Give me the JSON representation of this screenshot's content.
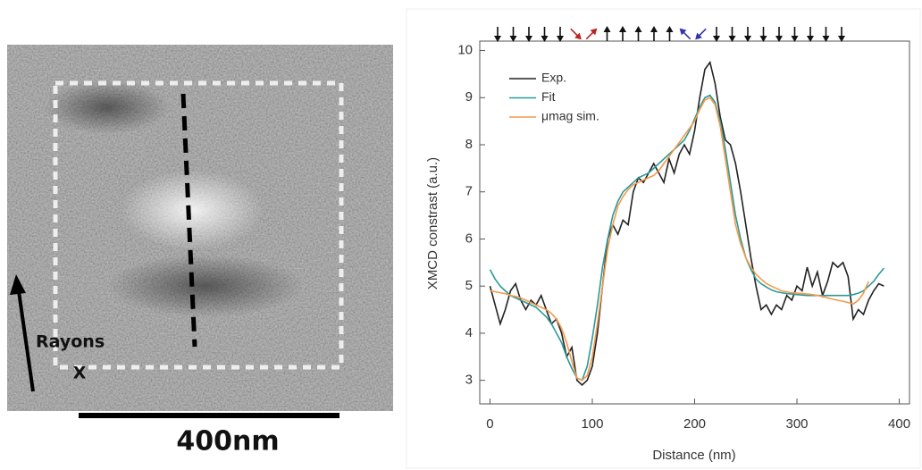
{
  "image_panel": {
    "label_line1": "Rayons",
    "label_line2": "X",
    "scale_bar": "400nm"
  },
  "chart_data": {
    "type": "line",
    "y_label": "XMCD constrast (a.u.)",
    "x_label": "Distance (nm)",
    "xlim": [
      -10,
      410
    ],
    "ylim": [
      2.5,
      10.2
    ],
    "xticks": [
      0,
      100,
      200,
      300,
      400
    ],
    "yticks": [
      3,
      4,
      5,
      6,
      7,
      8,
      9,
      10
    ],
    "legend": "upper left",
    "x": [
      0,
      5,
      10,
      15,
      20,
      25,
      30,
      35,
      40,
      45,
      50,
      55,
      60,
      65,
      70,
      75,
      80,
      85,
      90,
      95,
      100,
      105,
      110,
      115,
      120,
      125,
      130,
      135,
      140,
      145,
      150,
      155,
      160,
      165,
      170,
      175,
      180,
      185,
      190,
      195,
      200,
      205,
      210,
      215,
      220,
      225,
      230,
      235,
      240,
      245,
      250,
      255,
      260,
      265,
      270,
      275,
      280,
      285,
      290,
      295,
      300,
      305,
      310,
      315,
      320,
      325,
      330,
      335,
      340,
      345,
      350,
      355,
      360,
      365,
      370,
      375,
      380,
      385
    ],
    "series": [
      {
        "name": "Exp.",
        "color": "#222222",
        "values": [
          5.0,
          4.6,
          4.2,
          4.5,
          4.9,
          5.05,
          4.7,
          4.5,
          4.7,
          4.6,
          4.8,
          4.5,
          4.2,
          4.3,
          4.0,
          3.5,
          3.7,
          3.0,
          2.9,
          3.0,
          3.3,
          4.0,
          5.0,
          6.0,
          6.3,
          6.1,
          6.4,
          6.3,
          7.0,
          7.3,
          7.2,
          7.4,
          7.6,
          7.4,
          7.2,
          7.7,
          7.4,
          7.8,
          8.0,
          7.8,
          8.3,
          9.0,
          9.6,
          9.75,
          9.3,
          8.6,
          8.1,
          8.0,
          7.6,
          7.0,
          6.3,
          5.6,
          5.0,
          4.5,
          4.6,
          4.4,
          4.6,
          4.5,
          4.8,
          4.7,
          5.0,
          4.9,
          5.4,
          5.0,
          5.3,
          4.8,
          5.1,
          5.5,
          5.4,
          5.5,
          5.2,
          4.3,
          4.5,
          4.4,
          4.7,
          4.9,
          5.05,
          5.0
        ]
      },
      {
        "name": "Fit",
        "color": "#2a9a98",
        "values": [
          5.35,
          5.15,
          5.0,
          4.9,
          4.8,
          4.75,
          4.7,
          4.65,
          4.6,
          4.55,
          4.45,
          4.35,
          4.2,
          4.0,
          3.8,
          3.5,
          3.25,
          3.05,
          3.0,
          3.3,
          3.9,
          4.6,
          5.4,
          6.0,
          6.5,
          6.8,
          7.0,
          7.1,
          7.2,
          7.3,
          7.35,
          7.4,
          7.5,
          7.6,
          7.7,
          7.8,
          7.9,
          8.0,
          8.1,
          8.3,
          8.55,
          8.8,
          9.0,
          9.05,
          8.9,
          8.5,
          7.9,
          7.2,
          6.5,
          6.0,
          5.6,
          5.35,
          5.15,
          5.05,
          4.98,
          4.92,
          4.88,
          4.86,
          4.84,
          4.83,
          4.82,
          4.81,
          4.8,
          4.8,
          4.8,
          4.8,
          4.8,
          4.8,
          4.8,
          4.8,
          4.8,
          4.82,
          4.85,
          4.9,
          5.0,
          5.1,
          5.25,
          5.38
        ]
      },
      {
        "name": "μmag sim.",
        "color": "#f5984a",
        "values": [
          4.9,
          4.88,
          4.86,
          4.84,
          4.8,
          4.78,
          4.75,
          4.7,
          4.65,
          4.6,
          4.55,
          4.5,
          4.42,
          4.3,
          4.1,
          3.8,
          3.4,
          3.05,
          3.0,
          3.1,
          3.5,
          4.2,
          5.0,
          5.8,
          6.3,
          6.7,
          6.9,
          7.05,
          7.15,
          7.2,
          7.25,
          7.3,
          7.35,
          7.45,
          7.6,
          7.75,
          7.9,
          8.05,
          8.2,
          8.35,
          8.5,
          8.75,
          8.95,
          9.0,
          8.85,
          8.4,
          7.7,
          7.0,
          6.3,
          5.9,
          5.6,
          5.4,
          5.25,
          5.15,
          5.05,
          5.0,
          4.95,
          4.9,
          4.88,
          4.86,
          4.85,
          4.84,
          4.83,
          4.82,
          4.8,
          4.78,
          4.75,
          4.72,
          4.7,
          4.68,
          4.65,
          4.62,
          4.7,
          4.85,
          5.1,
          null,
          null,
          null
        ]
      }
    ]
  }
}
